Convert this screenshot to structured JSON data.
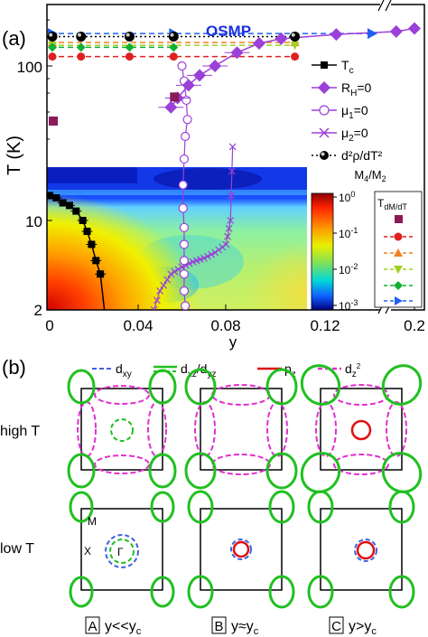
{
  "panel_a": {
    "label": "(a)",
    "ylabel": "T (K)",
    "xlabel": "y",
    "region_label": "OSMP",
    "y_ticks": [
      "100",
      "10",
      "2"
    ],
    "x_ticks": [
      "0",
      "0.04",
      "0.08",
      "0.12",
      "0.2"
    ],
    "legend": [
      "T",
      "R",
      "μ",
      "μ",
      "d²ρ/dT²"
    ],
    "colorbar_title": "M",
    "colorbar_ticks": [
      "10",
      "10",
      "10",
      "10"
    ],
    "inset_legend_title": "T"
  },
  "chart_data": [
    {
      "type": "scatter",
      "xlabel": "y",
      "ylabel": "T (K)",
      "yscale": "log",
      "ylim": [
        2,
        200
      ],
      "x_ticks": [
        0,
        0.04,
        0.08,
        0.12,
        0.2
      ],
      "x_axis_break": [
        0.145,
        0.155
      ],
      "series": [
        {
          "name": "Tc",
          "x": [
            0.0,
            0.003,
            0.006,
            0.009,
            0.012,
            0.015,
            0.017,
            0.019,
            0.021,
            0.023,
            0.025
          ],
          "y": [
            14.5,
            14,
            13,
            12.5,
            11.5,
            10,
            8.5,
            7,
            5.5,
            4.5,
            2.5
          ]
        },
        {
          "name": "RH=0",
          "x": [
            0.055,
            0.058,
            0.063,
            0.068,
            0.075,
            0.085,
            0.095,
            0.105,
            0.13,
            0.165,
            0.2
          ],
          "y": [
            54,
            62,
            75,
            87,
            100,
            122,
            140,
            150,
            160,
            167,
            175
          ]
        },
        {
          "name": "μ1=0",
          "x": [
            0.06,
            0.061,
            0.062,
            0.0625,
            0.0615,
            0.061,
            0.0605,
            0.0605,
            0.061,
            0.061,
            0.061,
            0.061,
            0.061,
            0.0615,
            0.062
          ],
          "y": [
            100,
            80,
            60,
            45,
            35,
            25,
            17,
            12,
            9,
            7,
            5.5,
            4.5,
            3.5,
            2.8,
            2.2
          ]
        },
        {
          "name": "μ2=0",
          "x": [
            0.046,
            0.05,
            0.055,
            0.06,
            0.065,
            0.07,
            0.075,
            0.08,
            0.082,
            0.083
          ],
          "y": [
            2.3,
            3.5,
            4.5,
            5.0,
            5.4,
            5.7,
            6.2,
            7.0,
            10,
            30
          ]
        },
        {
          "name": "d²ρ/dT²",
          "x": [
            0.0,
            0.013,
            0.035,
            0.055,
            0.11
          ],
          "y": [
            155,
            155,
            155,
            155,
            155
          ]
        },
        {
          "name": "TdM/dT square",
          "x": [
            0.0,
            0.055
          ],
          "y": [
            44,
            63
          ]
        },
        {
          "name": "TdM/dT circle",
          "x": [
            0.0,
            0.013,
            0.035,
            0.055,
            0.11
          ],
          "y": [
            115,
            115,
            115,
            115,
            115
          ]
        },
        {
          "name": "TdM/dT triangle",
          "x": [
            0.0,
            0.11
          ],
          "y": [
            142,
            142
          ]
        },
        {
          "name": "TdM/dT inverted triangle",
          "x": [
            0.0,
            0.11
          ],
          "y": [
            136,
            136
          ]
        },
        {
          "name": "TdM/dT diamond",
          "x": [
            0.0,
            0.013,
            0.035,
            0.055
          ],
          "y": [
            132,
            132,
            132,
            132
          ]
        },
        {
          "name": "TdM/dT right triangle",
          "x": [
            0.0,
            0.055,
            0.145
          ],
          "y": [
            162,
            162,
            162
          ]
        }
      ]
    }
  ],
  "panel_b": {
    "label": "(b)",
    "legend": [
      "d",
      "d",
      "p",
      "d"
    ],
    "row_labels": [
      "high T",
      "low T"
    ],
    "bz_labels": [
      "M",
      "X",
      "Γ"
    ],
    "columns": [
      {
        "box": "A",
        "text": "y<<y"
      },
      {
        "box": "B",
        "text": "y≈y"
      },
      {
        "box": "C",
        "text": "y>y"
      }
    ]
  }
}
